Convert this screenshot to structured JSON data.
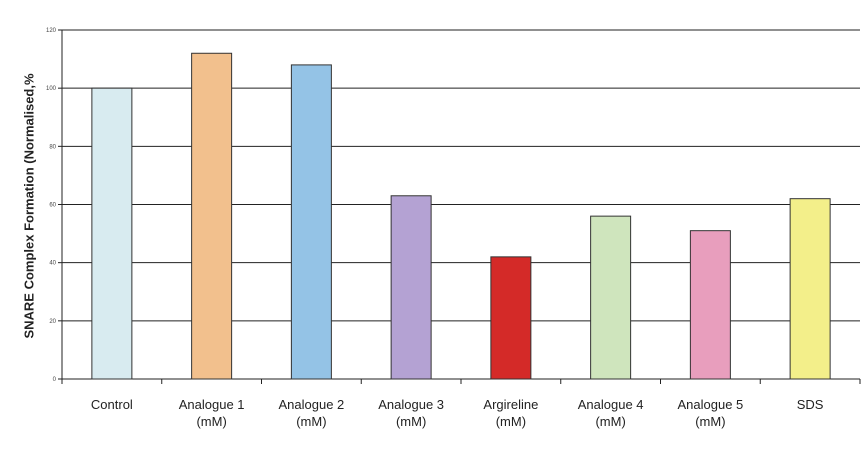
{
  "chart_data": {
    "type": "bar",
    "title": "",
    "xlabel": "",
    "ylabel": "SNARE Complex Formation (Normalised,%",
    "categories": [
      [
        "Control"
      ],
      [
        "Analogue 1",
        "(mM)"
      ],
      [
        "Analogue 2",
        "(mM)"
      ],
      [
        "Analogue 3",
        "(mM)"
      ],
      [
        "Argireline",
        "(mM)"
      ],
      [
        "Analogue 4",
        "(mM)"
      ],
      [
        "Analogue 5",
        "(mM)"
      ],
      [
        "SDS"
      ]
    ],
    "values": [
      100,
      112,
      108,
      63,
      42,
      56,
      51,
      62
    ],
    "colors": [
      "#d8ebf0",
      "#f2c08d",
      "#94c3e6",
      "#b4a2d3",
      "#d42a28",
      "#cfe5bd",
      "#e89ebd",
      "#f3ef8a"
    ],
    "ylim": [
      0,
      120
    ],
    "yticks": [
      0,
      20,
      40,
      60,
      80,
      100,
      120
    ],
    "grid": true,
    "legend": "none"
  }
}
